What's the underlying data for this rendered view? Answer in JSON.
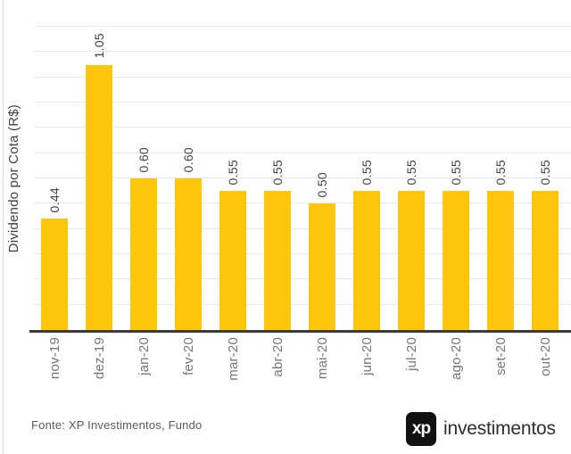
{
  "chart_data": {
    "type": "bar",
    "categories": [
      "nov-19",
      "dez-19",
      "jan-20",
      "fev-20",
      "mar-20",
      "abr-20",
      "mai-20",
      "jun-20",
      "jul-20",
      "ago-20",
      "set-20",
      "out-20"
    ],
    "values": [
      0.44,
      1.05,
      0.6,
      0.6,
      0.55,
      0.55,
      0.5,
      0.55,
      0.55,
      0.55,
      0.55,
      0.55
    ],
    "value_labels": [
      "0.44",
      "1.05",
      "0.60",
      "0.60",
      "0.55",
      "0.55",
      "0.50",
      "0.55",
      "0.55",
      "0.55",
      "0.55",
      "0.55"
    ],
    "title": "",
    "xlabel": "",
    "ylabel": "Dividendo por Cota (R$)",
    "ylim": [
      0,
      1.2
    ],
    "grid_step": 0.1,
    "grid": "horizontal-only",
    "legend_position": "none",
    "label_rotation_deg": -90,
    "bar_color": "#FEC70D"
  },
  "footer": {
    "source_text": "Fonte: XP Investimentos, Fundo",
    "logo": {
      "mark_text": "xp",
      "brand_text": "investimentos"
    }
  },
  "colors": {
    "background": "#FFFFFF",
    "bar": "#FEC70D",
    "gridline": "#E8E8E8",
    "axis_line": "#3A3A3A",
    "value_label": "#424242",
    "category_label": "#757575",
    "ylabel": "#424242",
    "source": "#5A5A5A",
    "logo_bg": "#111111",
    "logo_text": "#FFFFFF",
    "brand_text": "#2F2F2F",
    "left_border": "#D8D8D8"
  }
}
